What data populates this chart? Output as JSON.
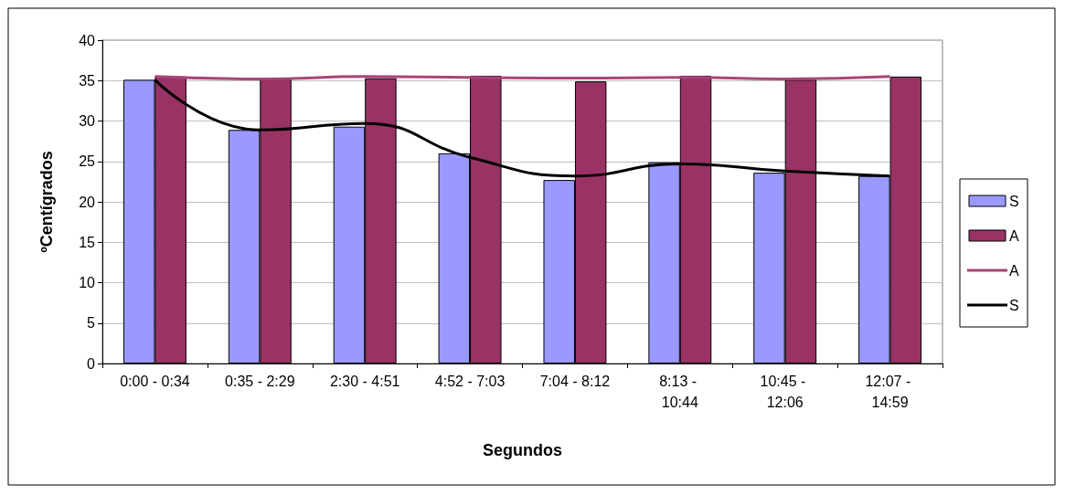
{
  "chart_data": {
    "type": "bar",
    "xlabel": "Segundos",
    "ylabel": "ºCentígrados",
    "categories": [
      "0:00 - 0:34",
      "0:35 - 2:29",
      "2:30 - 4:51",
      "4:52 - 7:03",
      "7:04 - 8:12",
      "8:13 - 10:44",
      "10:45 - 12:06",
      "12:07 - 14:59"
    ],
    "series": [
      {
        "name": "S",
        "color": "#9999ff",
        "values": [
          35.1,
          28.9,
          29.3,
          26.0,
          22.7,
          24.9,
          23.6,
          23.2
        ]
      },
      {
        "name": "A",
        "color": "#993366",
        "values": [
          35.5,
          35.2,
          35.3,
          35.6,
          34.9,
          35.6,
          35.1,
          35.5
        ]
      },
      {
        "name": "A",
        "type": "line",
        "color": "#a8457a",
        "values": [
          35.5,
          35.2,
          35.5,
          35.4,
          35.3,
          35.4,
          35.2,
          35.5
        ]
      },
      {
        "name": "S",
        "type": "line",
        "color": "#000000",
        "values": [
          35.1,
          28.9,
          29.7,
          25.5,
          23.2,
          24.7,
          23.8,
          23.2
        ]
      }
    ],
    "ylim": [
      0,
      40
    ],
    "yticks": [
      0,
      5,
      10,
      15,
      20,
      25,
      30,
      35,
      40
    ],
    "grid": "y",
    "legend": "right",
    "marker": "none"
  }
}
